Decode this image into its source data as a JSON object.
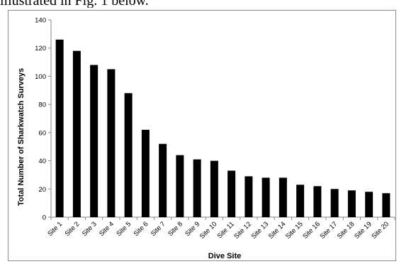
{
  "page": {
    "top_text": "illustrated in Fig. 1 below."
  },
  "chart_data": {
    "type": "bar",
    "categories": [
      "Site 1",
      "Site 2",
      "Site 3",
      "Site 4",
      "Site 5",
      "Site 6",
      "Site 7",
      "Site 8",
      "Site 9",
      "Site 10",
      "Site 11",
      "Site 12",
      "Site 13",
      "Site 14",
      "Site 15",
      "Site 16",
      "Site 17",
      "Site 18",
      "Site 19",
      "Site 20"
    ],
    "values": [
      126,
      118,
      108,
      105,
      88,
      62,
      52,
      44,
      41,
      40,
      33,
      29,
      28,
      28,
      23,
      22,
      20,
      19,
      18,
      17
    ],
    "title": "",
    "xlabel": "Dive Site",
    "ylabel": "Total Number of Sharkwatch Surveys",
    "ylim": [
      0,
      140
    ],
    "yticks": [
      0,
      20,
      40,
      60,
      80,
      100,
      120,
      140
    ],
    "grid": false,
    "legend": "none",
    "bar_color": "#000000"
  }
}
